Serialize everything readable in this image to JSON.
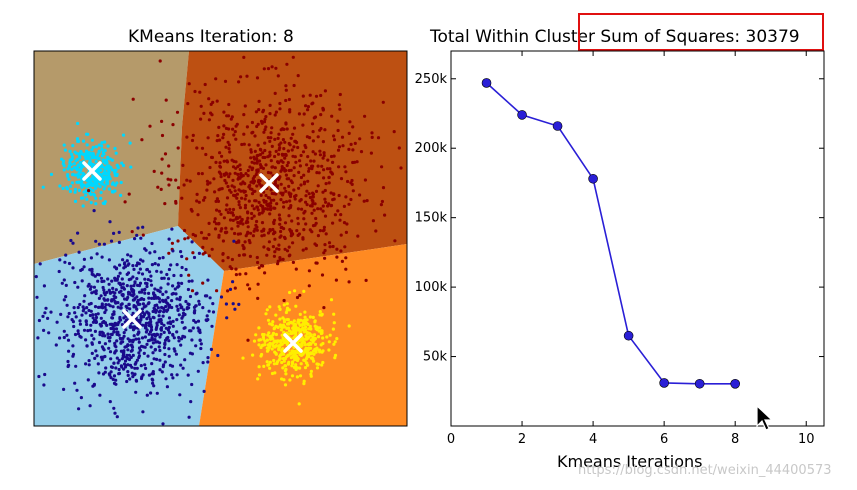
{
  "chart_data": [
    {
      "type": "scatter",
      "title": "KMeans Iteration: 8",
      "clusters": [
        {
          "name": "",
          "color": "#00d8ff",
          "region_color": "#b59a6a",
          "centroid": [
            92,
            171
          ],
          "spread": 14,
          "count": 350
        },
        {
          "name": "",
          "color": "#8b0000",
          "region_color": "#bd5012",
          "centroid": [
            269,
            183
          ],
          "spread": 48,
          "count": 900
        },
        {
          "name": "",
          "color": "#1a0a8c",
          "region_color": "#96cfea",
          "centroid": [
            132,
            319
          ],
          "spread": 36,
          "count": 900
        },
        {
          "name": "",
          "color": "#ffee00",
          "region_color": "#ff8a22",
          "centroid": [
            293,
            343
          ],
          "spread": 17,
          "count": 450
        }
      ]
    },
    {
      "type": "line",
      "title": "Total Within Cluster Sum of Squares: 30379",
      "xlabel": "Kmeans Iterations",
      "ylabel": "",
      "x": [
        1,
        2,
        3,
        4,
        5,
        6,
        7,
        8
      ],
      "y": [
        247000,
        224000,
        216000,
        178000,
        65000,
        31000,
        30400,
        30379
      ],
      "xlim": [
        0,
        10.5
      ],
      "ylim": [
        0,
        270000
      ],
      "xticks": [
        0,
        2,
        4,
        6,
        8,
        10
      ],
      "yticks": [
        50000,
        100000,
        150000,
        200000,
        250000
      ],
      "ytick_labels": [
        "50k",
        "100k",
        "150k",
        "200k",
        "250k"
      ],
      "line_color": "#2a1fd6",
      "marker_color": "#2a1fd6",
      "grid": false
    }
  ],
  "annotation": {
    "color": "#e01010"
  },
  "watermark": "https://blog.csdn.net/weixin_44400573",
  "icons": {
    "cursor": "mouse-pointer-icon"
  }
}
